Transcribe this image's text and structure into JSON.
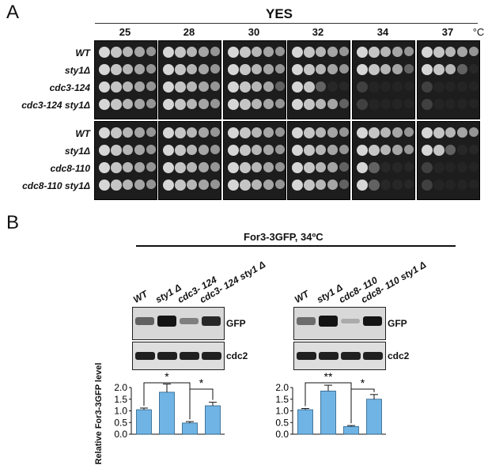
{
  "panel_a": {
    "letter": "A",
    "title": "YES",
    "temperature_unit": "°C",
    "temperatures": [
      "25",
      "28",
      "30",
      "32",
      "34",
      "37"
    ],
    "groups": [
      {
        "strains": [
          "WT",
          "sty1Δ",
          "cdc3-124",
          "cdc3-124  sty1Δ"
        ],
        "growth": [
          [
            5,
            5,
            5,
            5,
            5,
            5
          ],
          [
            5,
            5,
            5,
            5,
            4,
            3
          ],
          [
            5,
            5,
            4,
            2,
            0,
            0
          ],
          [
            5,
            5,
            5,
            4,
            0,
            0
          ]
        ]
      },
      {
        "strains": [
          "WT",
          "sty1Δ",
          "cdc8-110",
          "cdc8-110  sty1Δ"
        ],
        "growth": [
          [
            5,
            5,
            5,
            5,
            5,
            5
          ],
          [
            5,
            5,
            5,
            5,
            5,
            2
          ],
          [
            5,
            5,
            5,
            4,
            1,
            0
          ],
          [
            5,
            5,
            5,
            4,
            1,
            0
          ]
        ]
      }
    ]
  },
  "panel_b": {
    "letter": "B",
    "title": "For3-3GFP, 34ºC",
    "blot_labels": [
      "GFP",
      "cdc2"
    ],
    "y_axis_label": "Relative For3-3GFP level",
    "left": {
      "lanes": [
        "WT",
        "sty1 Δ",
        "cdc3- 124",
        "cdc3- 124  sty1 Δ"
      ],
      "gfp_band_intensity": [
        0.45,
        0.95,
        0.3,
        0.75
      ],
      "sig_labels": [
        "*",
        "*"
      ]
    },
    "right": {
      "lanes": [
        "WT",
        "sty1 Δ",
        "cdc8- 110",
        "cdc8- 110  sty1 Δ"
      ],
      "gfp_band_intensity": [
        0.4,
        0.9,
        0.08,
        0.85
      ],
      "sig_labels": [
        "**",
        "*"
      ]
    },
    "bar_color": "#6fb4e4"
  },
  "chart_data": [
    {
      "type": "bar",
      "title": "",
      "xlabel": "",
      "ylabel": "Relative For3-3GFP level",
      "categories": [
        "WT",
        "sty1 Δ",
        "cdc3- 124",
        "cdc3- 124  sty1 Δ"
      ],
      "values": [
        1.05,
        1.8,
        0.48,
        1.22
      ],
      "errors": [
        0.07,
        0.35,
        0.06,
        0.15
      ],
      "ylim": [
        0,
        2.0
      ],
      "yticks": [
        "0.0",
        "0.5",
        "1.0",
        "1.5",
        "2.0"
      ],
      "significance": [
        {
          "pair": [
            0,
            2
          ],
          "label": "*"
        },
        {
          "pair": [
            2,
            3
          ],
          "label": "*"
        }
      ]
    },
    {
      "type": "bar",
      "title": "",
      "xlabel": "",
      "ylabel": "Relative For3-3GFP level",
      "categories": [
        "WT",
        "sty1 Δ",
        "cdc8- 110",
        "cdc8- 110  sty1 Δ"
      ],
      "values": [
        1.05,
        1.85,
        0.33,
        1.5
      ],
      "errors": [
        0.05,
        0.25,
        0.04,
        0.2
      ],
      "ylim": [
        0,
        2.0
      ],
      "yticks": [
        "0.0",
        "0.5",
        "1.0",
        "1.5",
        "2.0"
      ],
      "significance": [
        {
          "pair": [
            0,
            2
          ],
          "label": "**"
        },
        {
          "pair": [
            2,
            3
          ],
          "label": "*"
        }
      ]
    }
  ]
}
